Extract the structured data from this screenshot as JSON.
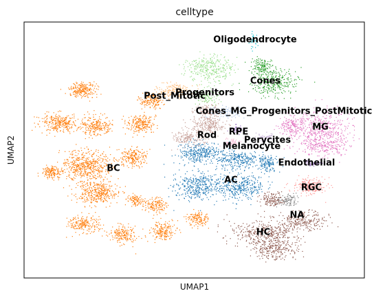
{
  "chart_data": {
    "type": "scatter",
    "title": "celltype",
    "xlabel": "UMAP1",
    "ylabel": "UMAP2",
    "grid": false,
    "legend": "on data",
    "series": [
      {
        "name": "BC",
        "color": "#ff7f0e"
      },
      {
        "name": "AC",
        "color": "#1f77b4"
      },
      {
        "name": "HC",
        "color": "#8c564b"
      },
      {
        "name": "MG",
        "color": "#e377c2"
      },
      {
        "name": "Cones",
        "color": "#2ca02c"
      },
      {
        "name": "Rod",
        "color": "#c49c94"
      },
      {
        "name": "RGC",
        "color": "#ff9896"
      },
      {
        "name": "NA",
        "color": "#7f7f7f"
      },
      {
        "name": "Progenitors",
        "color": "#98df8a"
      },
      {
        "name": "Post_Mitotic",
        "color": "#ffbb78"
      },
      {
        "name": "Cones_MG_Progenitors_PostMitotic",
        "color": "#aec7e8"
      },
      {
        "name": "RPE",
        "color": "#9467bd"
      },
      {
        "name": "Perycites",
        "color": "#c5b0d5"
      },
      {
        "name": "Melanocyte",
        "color": "#f7b6d2"
      },
      {
        "name": "Endothelial",
        "color": "#9467bd"
      },
      {
        "name": "Oligodendrocyte",
        "color": "#17becf"
      }
    ]
  }
}
